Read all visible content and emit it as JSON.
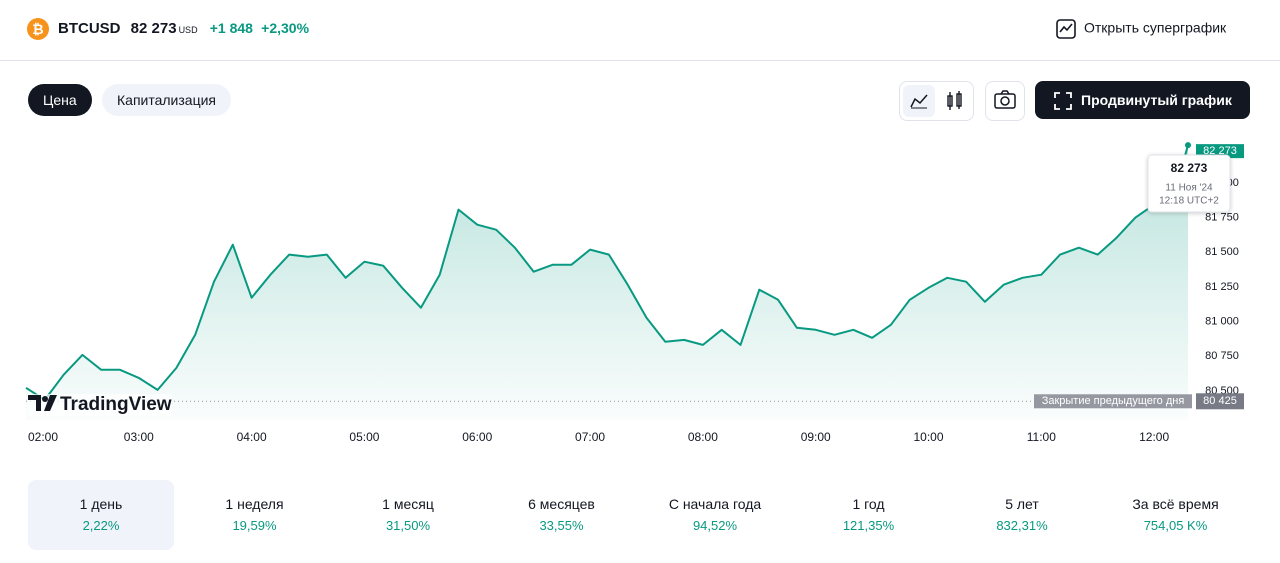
{
  "header": {
    "symbol": "BTCUSD",
    "price": "82 273",
    "currency": "USD",
    "change": "+1 848",
    "change_percent": "+2,30%",
    "open_supergraph": "Открыть суперграфик"
  },
  "tabs": [
    "Цена",
    "Капитализация"
  ],
  "advanced_chart": "Продвинутый график",
  "logo": "TradingView",
  "chart_data": {
    "type": "line",
    "color": "#089981",
    "x": [
      "02:00",
      "02:10",
      "02:20",
      "02:30",
      "02:40",
      "02:50",
      "03:00",
      "03:10",
      "03:20",
      "03:30",
      "03:40",
      "03:50",
      "04:00",
      "04:10",
      "04:20",
      "04:30",
      "04:40",
      "04:50",
      "05:00",
      "05:10",
      "05:20",
      "05:30",
      "05:40",
      "05:50",
      "06:00",
      "06:10",
      "06:20",
      "06:30",
      "06:40",
      "06:50",
      "07:00",
      "07:10",
      "07:20",
      "07:30",
      "07:40",
      "07:50",
      "08:00",
      "08:10",
      "08:20",
      "08:30",
      "08:40",
      "08:50",
      "09:00",
      "09:10",
      "09:20",
      "09:30",
      "09:40",
      "09:50",
      "10:00",
      "10:10",
      "10:20",
      "10:30",
      "10:40",
      "10:50",
      "11:00",
      "11:10",
      "11:20",
      "11:30",
      "11:40",
      "11:50",
      "12:00",
      "12:10",
      "12:18"
    ],
    "values": [
      80522,
      80435,
      80616,
      80760,
      80652,
      80652,
      80594,
      80507,
      80666,
      80905,
      81288,
      81555,
      81172,
      81338,
      81483,
      81468,
      81483,
      81316,
      81432,
      81403,
      81244,
      81100,
      81338,
      81808,
      81699,
      81663,
      81533,
      81360,
      81410,
      81410,
      81519,
      81483,
      81266,
      81027,
      80854,
      80868,
      80832,
      80941,
      80832,
      81230,
      81157,
      80955,
      80941,
      80905,
      80941,
      80883,
      80977,
      81157,
      81244,
      81316,
      81288,
      81143,
      81266,
      81316,
      81338,
      81483,
      81533,
      81483,
      81605,
      81750,
      81844,
      81894,
      82273
    ],
    "xlim": [
      "02:00",
      "12:18"
    ],
    "xticks": [
      "02:00",
      "03:00",
      "04:00",
      "05:00",
      "06:00",
      "07:00",
      "08:00",
      "09:00",
      "10:00",
      "11:00",
      "12:00"
    ],
    "ylim": [
      80290,
      82310
    ],
    "yticks": [
      {
        "value": 80500,
        "label": "80 500"
      },
      {
        "value": 80750,
        "label": "80 750"
      },
      {
        "value": 81000,
        "label": "81 000"
      },
      {
        "value": 81250,
        "label": "81 250"
      },
      {
        "value": 81500,
        "label": "81 500"
      },
      {
        "value": 81750,
        "label": "81 750"
      },
      {
        "value": 82000,
        "label": "82 000"
      }
    ],
    "last_label": "82 273",
    "tooltip": {
      "price": "82 273",
      "date": "11 Ноя '24",
      "time": "12:18 UTC+2"
    },
    "reference_line": {
      "value": 80425,
      "label": "Закрытие предыдущего дня",
      "value_label": "80 425"
    }
  },
  "periods": [
    {
      "label": "1 день",
      "change": "2,22%"
    },
    {
      "label": "1 неделя",
      "change": "19,59%"
    },
    {
      "label": "1 месяц",
      "change": "31,50%"
    },
    {
      "label": "6 месяцев",
      "change": "33,55%"
    },
    {
      "label": "С начала года",
      "change": "94,52%"
    },
    {
      "label": "1 год",
      "change": "121,35%"
    },
    {
      "label": "5 лет",
      "change": "832,31%"
    },
    {
      "label": "За всё время",
      "change": "754,05 K%"
    }
  ]
}
